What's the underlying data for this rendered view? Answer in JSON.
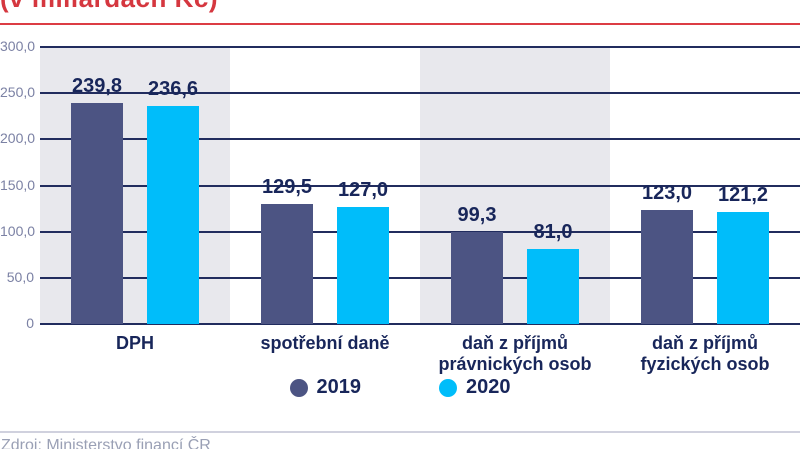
{
  "header": {
    "title": "(v miliardách Kč)",
    "title_color": "#d5373f",
    "rule_color": "#dc3c44"
  },
  "chart_data": {
    "type": "bar",
    "title": "(v miliardách Kč)",
    "categories": [
      "DPH",
      "spotřební daně",
      "daň z příjmů\nprávnických osob",
      "daň z příjmů\nfyzických osob"
    ],
    "category_shaded": [
      true,
      false,
      true,
      false
    ],
    "series": [
      {
        "name": "2019",
        "color": "#4c5483",
        "values": [
          239.8,
          129.5,
          99.3,
          123.0
        ],
        "labels": [
          "239,8",
          "129,5",
          "99,3",
          "123,0"
        ]
      },
      {
        "name": "2020",
        "color": "#00bdfa",
        "values": [
          236.6,
          127.0,
          81.0,
          121.2
        ],
        "labels": [
          "236,6",
          "127,0",
          "81,0",
          "121,2"
        ]
      }
    ],
    "xlabel": "",
    "ylabel": "",
    "ylim": [
      0,
      300
    ],
    "y_axis": {
      "min": 0,
      "max": 300,
      "tick_values": [
        300,
        250,
        200,
        150,
        100,
        50,
        0
      ],
      "tick_labels": [
        "300,0",
        "250,0",
        "200,0",
        "150,0",
        "100,0",
        "50,0",
        "0"
      ]
    },
    "grid": true,
    "legend_position": "bottom",
    "colors": {
      "gridline": "#212c5e",
      "band": "#e8e8ed",
      "tick_label": "#7b81a4",
      "value_label": "#18265a",
      "category_label": "#18265a",
      "legend_label": "#18265a"
    }
  },
  "footer": {
    "source": "Zdroj: Ministerstvo financí ČR",
    "source_color": "#9aa0b5",
    "rule_color": "#d0d1de"
  }
}
